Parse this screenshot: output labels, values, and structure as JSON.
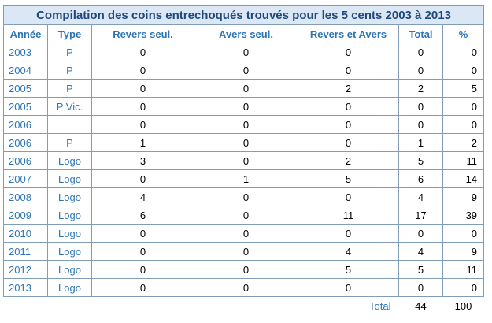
{
  "title": "Compilation des coins entrechoqués trouvés pour les 5 cents 2003 à 2013",
  "headers": [
    "Année",
    "Type",
    "Revers seul.",
    "Avers seul.",
    "Revers et Avers",
    "Total",
    "%"
  ],
  "rows": [
    {
      "annee": "2003",
      "type": "P",
      "revers": "0",
      "avers": "0",
      "revers_avers": "0",
      "total": "0",
      "pct": "0"
    },
    {
      "annee": "2004",
      "type": "P",
      "revers": "0",
      "avers": "0",
      "revers_avers": "0",
      "total": "0",
      "pct": "0"
    },
    {
      "annee": "2005",
      "type": "P",
      "revers": "0",
      "avers": "0",
      "revers_avers": "2",
      "total": "2",
      "pct": "5"
    },
    {
      "annee": "2005",
      "type": "P Vic.",
      "revers": "0",
      "avers": "0",
      "revers_avers": "0",
      "total": "0",
      "pct": "0"
    },
    {
      "annee": "2006",
      "type": "",
      "revers": "0",
      "avers": "0",
      "revers_avers": "0",
      "total": "0",
      "pct": "0"
    },
    {
      "annee": "2006",
      "type": "P",
      "revers": "1",
      "avers": "0",
      "revers_avers": "0",
      "total": "1",
      "pct": "2"
    },
    {
      "annee": "2006",
      "type": "Logo",
      "revers": "3",
      "avers": "0",
      "revers_avers": "2",
      "total": "5",
      "pct": "11"
    },
    {
      "annee": "2007",
      "type": "Logo",
      "revers": "0",
      "avers": "1",
      "revers_avers": "5",
      "total": "6",
      "pct": "14"
    },
    {
      "annee": "2008",
      "type": "Logo",
      "revers": "4",
      "avers": "0",
      "revers_avers": "0",
      "total": "4",
      "pct": "9"
    },
    {
      "annee": "2009",
      "type": "Logo",
      "revers": "6",
      "avers": "0",
      "revers_avers": "11",
      "total": "17",
      "pct": "39"
    },
    {
      "annee": "2010",
      "type": "Logo",
      "revers": "0",
      "avers": "0",
      "revers_avers": "0",
      "total": "0",
      "pct": "0"
    },
    {
      "annee": "2011",
      "type": "Logo",
      "revers": "0",
      "avers": "0",
      "revers_avers": "4",
      "total": "4",
      "pct": "9"
    },
    {
      "annee": "2012",
      "type": "Logo",
      "revers": "0",
      "avers": "0",
      "revers_avers": "5",
      "total": "5",
      "pct": "11"
    },
    {
      "annee": "2013",
      "type": "Logo",
      "revers": "0",
      "avers": "0",
      "revers_avers": "0",
      "total": "0",
      "pct": "0"
    }
  ],
  "totals": {
    "label": "Total",
    "total": "44",
    "pct": "100"
  },
  "colors": {
    "accent": "#2e75b6",
    "title_text": "#1f497d",
    "title_bg": "#dbe7f5",
    "border": "#7f9db9"
  }
}
